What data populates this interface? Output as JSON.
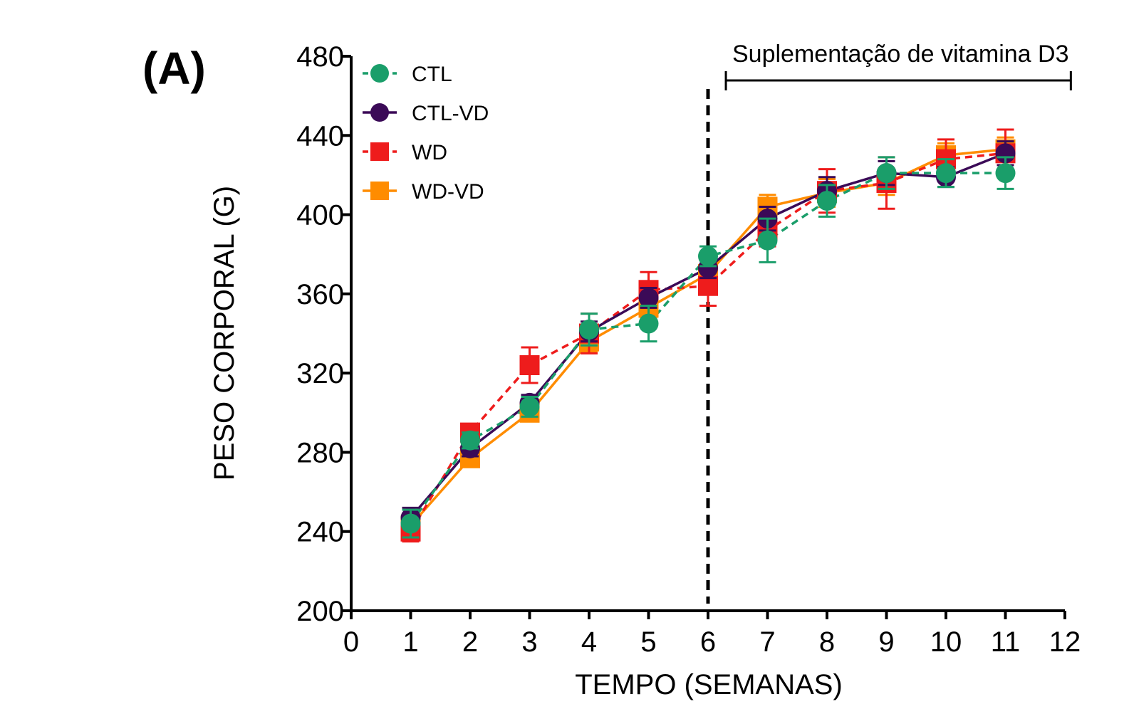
{
  "panel_label": "(A)",
  "chart_data": {
    "type": "line",
    "xlabel": "TEMPO (SEMANAS)",
    "ylabel": "PESO CORPORAL (G)",
    "xlim": [
      0,
      12
    ],
    "ylim": [
      200,
      480
    ],
    "x_ticks": [
      "0",
      "1",
      "2",
      "3",
      "4",
      "5",
      "6",
      "7",
      "8",
      "9",
      "10",
      "11",
      "12"
    ],
    "y_ticks": [
      "200",
      "240",
      "280",
      "320",
      "360",
      "400",
      "440",
      "480"
    ],
    "legend_position": "top-left",
    "grid": false,
    "annotation": {
      "text": "Suplementação de vitamina D3",
      "x_start": 6.3,
      "x_end": 12.1
    },
    "vertical_line_x": 6,
    "x": [
      1,
      2,
      3,
      4,
      5,
      6,
      7,
      8,
      9,
      10,
      11
    ],
    "series": [
      {
        "name": "CTL",
        "color": "#1a9e6a",
        "marker": "circle",
        "dashed": true,
        "values": [
          244,
          286,
          303,
          342,
          345,
          379,
          387,
          407,
          421,
          421,
          421
        ],
        "errors": [
          7,
          4,
          5,
          8,
          9,
          5,
          11,
          8,
          8,
          7,
          8
        ]
      },
      {
        "name": "CTL-VD",
        "color": "#3b0a57",
        "marker": "circle",
        "dashed": false,
        "values": [
          247,
          282,
          305,
          341,
          358,
          373,
          398,
          412,
          421,
          419,
          431
        ],
        "errors": [
          5,
          4,
          4,
          5,
          5,
          5,
          6,
          7,
          6,
          5,
          6
        ]
      },
      {
        "name": "WD",
        "color": "#ee1c1c",
        "marker": "square",
        "dashed": true,
        "values": [
          240,
          290,
          324,
          340,
          362,
          364,
          392,
          412,
          416,
          428,
          431
        ],
        "errors": [
          5,
          4,
          9,
          10,
          9,
          10,
          8,
          11,
          13,
          10,
          12
        ]
      },
      {
        "name": "WD-VD",
        "color": "#ff8c00",
        "marker": "square",
        "dashed": false,
        "values": [
          243,
          277,
          300,
          336,
          353,
          370,
          404,
          411,
          416,
          430,
          433
        ],
        "errors": [
          5,
          4,
          4,
          5,
          5,
          5,
          6,
          7,
          6,
          6,
          6
        ]
      }
    ]
  }
}
